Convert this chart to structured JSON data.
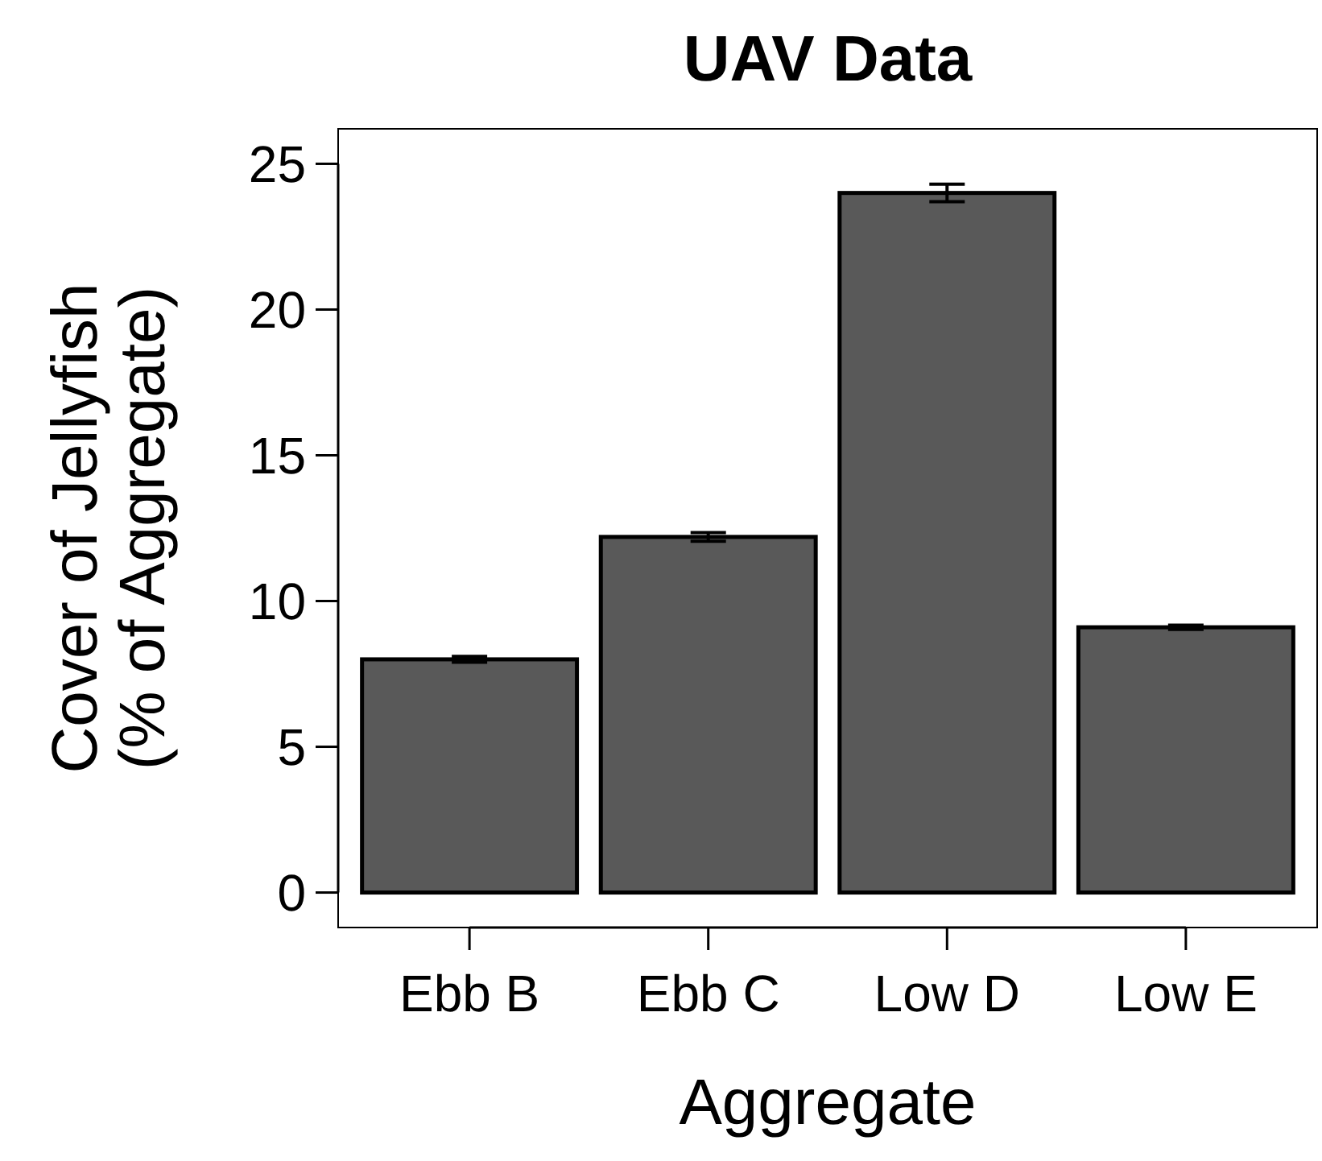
{
  "chart_data": {
    "type": "bar",
    "title": "UAV Data",
    "xlabel": "Aggregate",
    "ylabel": "Cover of Jellyfish\n(% of Aggregate)",
    "categories": [
      "Ebb B",
      "Ebb C",
      "Low D",
      "Low E"
    ],
    "values": [
      8.0,
      12.2,
      24.0,
      9.1
    ],
    "errors": [
      0.1,
      0.15,
      0.3,
      0.07
    ],
    "color": "#595959",
    "ylim": [
      -1.2,
      26.2
    ],
    "yticks": [
      0,
      5,
      10,
      15,
      20,
      25
    ],
    "grid": false
  }
}
